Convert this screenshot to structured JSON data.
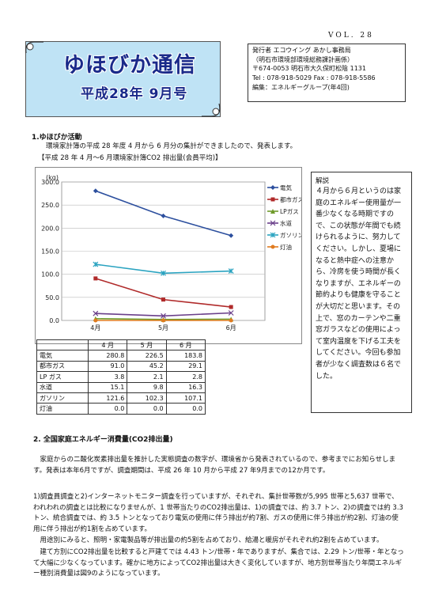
{
  "header": {
    "volume": "VOL. 28",
    "title": "ゆほびか通信",
    "subtitle": "平成28年 9月号",
    "publisher_lines": [
      "発行者  エコウイング あかし事務局",
      "（明石市環境部環境総務課計画係）",
      "〒674-0053 明石市大久保町松陰 1131",
      "Tel : 078-918-5029   Fax : 078-918-5586",
      "編集：エネルギーグループ(年4回)"
    ]
  },
  "section1": {
    "heading": "1.ゆほびか活動",
    "intro": "環境家計簿の平成 28 年度 4 月から 6 月分の集計ができましたので、発表します。",
    "chart_caption": "【平成 28 年 4 月～6 月環境家計簿CO2 排出量(会員平均)】"
  },
  "chart_data": {
    "type": "line",
    "ylabel": "(kg)",
    "ylim": [
      0,
      300
    ],
    "yticks": [
      "0.0",
      "50.0",
      "100.0",
      "150.0",
      "200.0",
      "250.0",
      "300.0"
    ],
    "categories": [
      "4月",
      "5月",
      "6月"
    ],
    "grid": true,
    "legend_position": "right",
    "series": [
      {
        "name": "電気",
        "values": [
          280.8,
          226.5,
          183.8
        ],
        "color": "#2c4f9e",
        "marker": "diamond"
      },
      {
        "name": "都市ガス",
        "values": [
          91.0,
          45.2,
          29.1
        ],
        "color": "#b02a2a",
        "marker": "square"
      },
      {
        "name": "LPガス",
        "values": [
          3.8,
          2.1,
          2.8
        ],
        "color": "#6f9a2a",
        "marker": "triangle"
      },
      {
        "name": "水道",
        "values": [
          15.1,
          9.8,
          16.3
        ],
        "color": "#6a3f8a",
        "marker": "x"
      },
      {
        "name": "ガソリン",
        "values": [
          121.6,
          102.3,
          107.1
        ],
        "color": "#2aa3c0",
        "marker": "star"
      },
      {
        "name": "灯油",
        "values": [
          0.0,
          0.0,
          0.0
        ],
        "color": "#e07b1f",
        "marker": "circle"
      }
    ]
  },
  "table": {
    "headers": [
      "",
      "4 月",
      "5 月",
      "6 月"
    ],
    "rows": [
      [
        "電気",
        "280.8",
        "226.5",
        "183.8"
      ],
      [
        "都市ガス",
        "91.0",
        "45.2",
        "29.1"
      ],
      [
        "LP ガス",
        "3.8",
        "2.1",
        "2.8"
      ],
      [
        "水道",
        "15.1",
        "9.8",
        "16.3"
      ],
      [
        "ガソリン",
        "121.6",
        "102.3",
        "107.1"
      ],
      [
        "灯油",
        "0.0",
        "0.0",
        "0.0"
      ]
    ]
  },
  "explanation": {
    "title": "解説",
    "body": "４月から６月というのは家庭のエネルギー使用量が一番少なくなる時期ですので、この状態が年間でも続けられるように、努力してください。しかし、夏場になると熱中症への注意から、冷房を使う時間が長くなりますが、エネルギーの節約よりも健康を守ることが大切だと思います。その上で、窓のカーテンや二重窓ガラスなどの使用によって室内温度を下げる工夫をしてください。今回も参加者が少なく調査数は６名でした。"
  },
  "section2": {
    "heading": "2. 全国家庭エネルギー消費量(CO2排出量)",
    "paragraphs": [
      "家庭からの二酸化炭素排出量を推計した実態調査の数字が、環境省から発表されているので、参考までにお知らせします。発表は本年6月ですが、調査期間は、平成 26 年 10 月から平成 27 年9月までの12か月です。",
      "1)調査員調査と2)インターネットモニター調査を行っていますが、それぞれ、集計世帯数が5,995 世帯と5,637 世帯で、われわれの調査とは比較になりませんが、1 世帯当たりのCO2排出量は、1)の調査では、約 3.7 トン、2)の調査では約 3.3トン、統合調査では、約 3.5 トンとなっており電気の使用に伴う排出が約7割、ガスの使用に伴う排出が約2割、灯油の使用に伴う排出が約1割を占めています。",
      "用途別にみると、照明・家電製品等が排出量の約5割を占めており、給湯と暖房がそれぞれ約2割を占めています。",
      "建て方別にCO2排出量を比較すると戸建てでは 4.43 トン/世帯・年でありますが、集合では、2.29 トン/世帯・年となって大幅に少なくなっています。確かに地方によってCO2排出量は大きく変化していますが、地方別世帯当たり年間エネルギー種別消費量は図9のようになっています。"
    ]
  }
}
